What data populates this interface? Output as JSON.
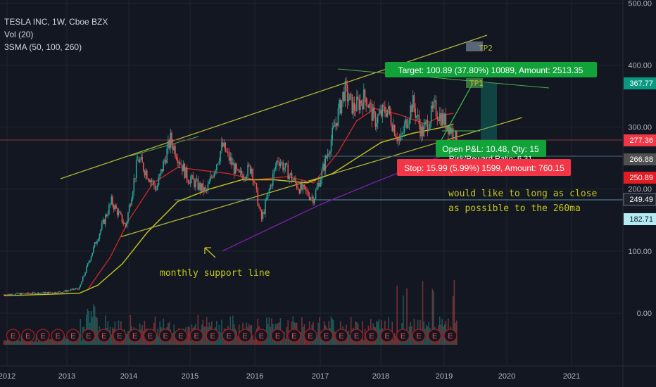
{
  "legend": {
    "symbol": "TESLA INC, 1W, Cboe BZX",
    "vol": "Vol (20)",
    "sma": "3SMA (50, 100, 260)"
  },
  "chart_data": {
    "type": "candlestick",
    "x_ticks": [
      "2012",
      "2013",
      "2014",
      "2015",
      "2016",
      "2017",
      "2018",
      "2019",
      "2020",
      "2021"
    ],
    "y_ticks": [
      "500.00",
      "400.00",
      "300.00",
      "200.00",
      "100.00",
      "0.00"
    ],
    "price_badges": [
      {
        "label": "367.77",
        "color": "#089981"
      },
      {
        "label": "277.36",
        "color": "#f23645"
      },
      {
        "label": "266.88",
        "color": "#505050"
      },
      {
        "label": "250.89",
        "color": "#e31b23"
      },
      {
        "label": "249.49",
        "color": "#1e222d"
      },
      {
        "label": "182.71",
        "color": "#b2ebf2"
      }
    ],
    "series": [
      {
        "name": "SMA 50",
        "color": "#c62828"
      },
      {
        "name": "SMA 100",
        "color": "#c6c61a"
      },
      {
        "name": "SMA 260",
        "color": "#7b1fa2"
      }
    ],
    "position": {
      "target": "Target: 100.89 (37.80%) 10089, Amount: 2513.35",
      "tp1": "TP1",
      "tp2": "TP2",
      "open_pl": "Open P&L: 10.48, Qty: 15",
      "risk_reward": "Risk/Reward Ratio: 6.31",
      "stop": "Stop: 15.99 (5.99%) 1599, Amount: 760.15"
    },
    "annotations": {
      "support": "monthly support line",
      "note_line1": "would like to long as close",
      "note_line2": "as possible to the 260ma"
    },
    "earnings_marker": "E"
  }
}
